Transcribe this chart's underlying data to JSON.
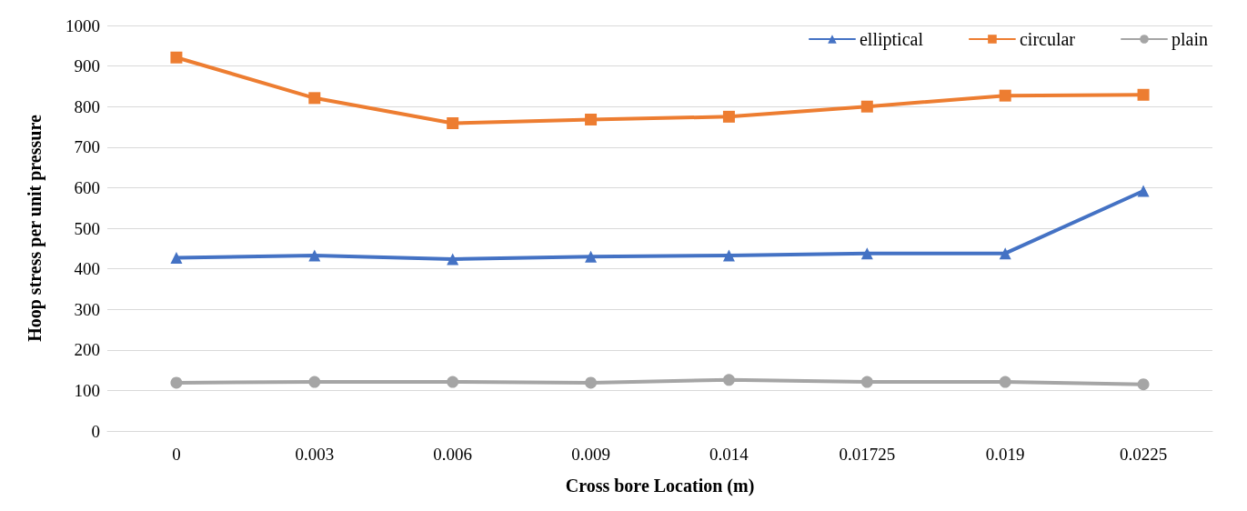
{
  "chart_data": {
    "type": "line",
    "xlabel": "Cross bore Location (m)",
    "ylabel": "Hoop stress per unit pressure",
    "categories": [
      "0",
      "0.003",
      "0.006",
      "0.009",
      "0.014",
      "0.01725",
      "0.019",
      "0.0225"
    ],
    "series": [
      {
        "name": "elliptical",
        "color": "#4472c4",
        "marker": "triangle",
        "values": [
          427,
          433,
          424,
          430,
          433,
          438,
          438,
          592
        ]
      },
      {
        "name": "circular",
        "color": "#ed7d31",
        "marker": "square",
        "values": [
          921,
          821,
          759,
          768,
          775,
          800,
          827,
          829
        ]
      },
      {
        "name": "plain",
        "color": "#a5a5a5",
        "marker": "circle",
        "values": [
          119,
          121,
          121,
          119,
          126,
          121,
          121,
          115
        ]
      }
    ],
    "ylim": [
      0,
      1000
    ],
    "yticks": [
      0,
      100,
      200,
      300,
      400,
      500,
      600,
      700,
      800,
      900,
      1000
    ],
    "grid": "y",
    "legend": "top right",
    "line_style": "solid"
  }
}
